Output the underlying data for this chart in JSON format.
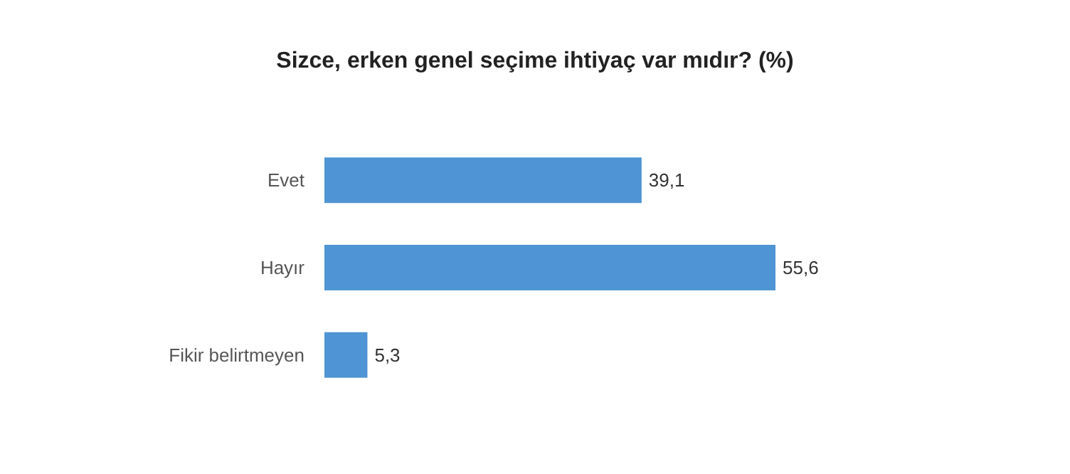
{
  "chart_data": {
    "type": "bar",
    "orientation": "horizontal",
    "title": "Sizce, erken genel seçime ihtiyaç var mıdır? (%)",
    "categories": [
      "Evet",
      "Hayır",
      "Fikir belirtmeyen"
    ],
    "values": [
      39.1,
      55.6,
      5.3
    ],
    "color": "#4f94d4",
    "value_labels": [
      "39,1",
      "55,6",
      "5,3"
    ]
  }
}
